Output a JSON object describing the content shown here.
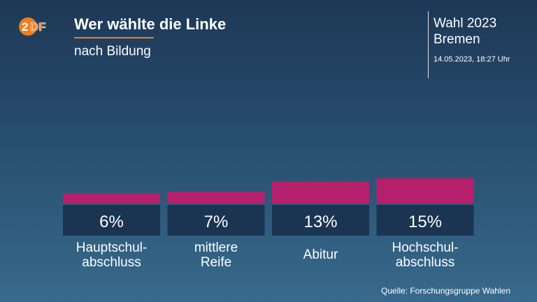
{
  "header": {
    "logo_text": "ZDF",
    "title": "Wer wählte die Linke",
    "subtitle": "nach Bildung",
    "election_line1": "Wahl 2023",
    "election_line2": "Bremen",
    "timestamp": "14.05.2023, 18:27 Uhr"
  },
  "footer": {
    "source": "Quelle: Forschungsgruppe Wahlen"
  },
  "colors": {
    "bar": "#b4206b",
    "value_box": "#1a3452",
    "accent": "#f07d1e",
    "logo": "#f07d1e"
  },
  "chart_data": {
    "type": "bar",
    "title": "Wer wählte die Linke",
    "subtitle": "nach Bildung",
    "categories": [
      [
        "Hauptschul-",
        "abschluss"
      ],
      [
        "mittlere",
        "Reife"
      ],
      [
        "Abitur"
      ],
      [
        "Hochschul-",
        "abschluss"
      ]
    ],
    "values": [
      6,
      7,
      13,
      15
    ],
    "value_labels": [
      "6%",
      "7%",
      "13%",
      "15%"
    ],
    "unit": "%"
  }
}
